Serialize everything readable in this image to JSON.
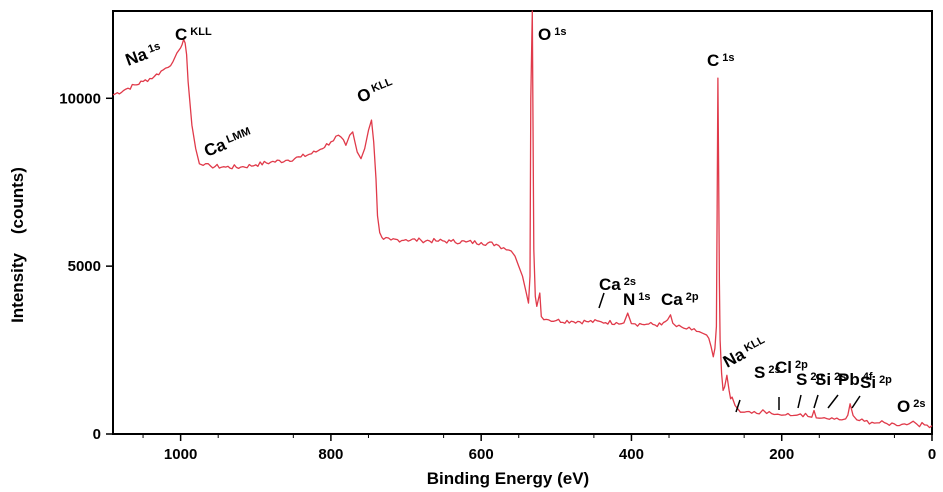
{
  "chart_data": {
    "type": "line",
    "title": "",
    "xlabel": "Binding Energy (eV)",
    "ylabel": "Intensity    (counts)",
    "xlim": [
      1090,
      0
    ],
    "ylim": [
      0,
      12600
    ],
    "x_ticks": [
      1000,
      800,
      600,
      400,
      200,
      0
    ],
    "y_ticks": [
      0,
      5000,
      10000
    ],
    "grid": false,
    "legend": "none",
    "line_color": "#e03a4a",
    "series": [
      {
        "x": [
          1090,
          1070,
          1050,
          1035,
          1020,
          1010,
          1005,
          1000,
          998,
          996,
          994,
          992,
          990,
          985,
          980,
          975,
          970,
          960,
          940,
          920,
          900,
          880,
          860,
          840,
          820,
          800,
          790,
          780,
          775,
          771,
          768,
          765,
          760,
          755,
          750,
          746,
          743,
          740,
          738,
          735,
          732,
          730,
          720,
          700,
          680,
          660,
          640,
          620,
          600,
          580,
          570,
          560,
          555,
          550,
          545,
          540,
          537,
          535,
          534,
          532,
          530,
          528,
          526,
          524,
          522,
          520,
          510,
          500,
          480,
          460,
          440,
          420,
          410,
          405,
          400,
          395,
          380,
          360,
          352,
          348,
          345,
          340,
          330,
          320,
          310,
          305,
          300,
          297,
          294,
          291,
          289,
          287,
          286,
          285,
          284,
          283,
          282,
          280,
          278,
          276,
          273,
          270,
          268,
          266,
          262,
          255,
          250,
          240,
          230,
          225,
          220,
          210,
          205,
          200,
          195,
          185,
          180,
          175,
          165,
          160,
          157,
          154,
          150,
          140,
          130,
          120,
          115,
          112,
          109,
          105,
          100,
          90,
          80,
          70,
          60,
          50,
          40,
          30,
          25,
          20,
          10,
          0
        ],
        "y": [
          10100,
          10300,
          10500,
          10650,
          10900,
          11100,
          11350,
          11500,
          11600,
          11750,
          11650,
          11300,
          10500,
          9200,
          8500,
          8050,
          8000,
          7980,
          7950,
          7950,
          8020,
          8100,
          8150,
          8250,
          8400,
          8700,
          8900,
          8600,
          8900,
          9000,
          8700,
          8400,
          8200,
          8500,
          9050,
          9350,
          8700,
          7600,
          6500,
          6000,
          5850,
          5800,
          5780,
          5790,
          5770,
          5750,
          5740,
          5720,
          5700,
          5650,
          5550,
          5450,
          5300,
          5000,
          4700,
          4200,
          3900,
          4700,
          10000,
          12600,
          5500,
          4100,
          3800,
          4000,
          4200,
          3500,
          3400,
          3380,
          3360,
          3350,
          3340,
          3320,
          3310,
          3600,
          3290,
          3280,
          3270,
          3250,
          3400,
          3550,
          3300,
          3200,
          3150,
          3100,
          3050,
          3000,
          2950,
          2850,
          2600,
          2300,
          2550,
          3200,
          6500,
          10600,
          8000,
          4500,
          2800,
          1800,
          1300,
          1400,
          1750,
          1300,
          1050,
          1100,
          850,
          650,
          650,
          620,
          600,
          720,
          610,
          580,
          590,
          560,
          570,
          550,
          560,
          600,
          520,
          500,
          700,
          480,
          470,
          460,
          440,
          420,
          450,
          560,
          900,
          550,
          420,
          380,
          350,
          330,
          310,
          300,
          290,
          310,
          380,
          290,
          270,
          250
        ]
      }
    ],
    "annotations": [
      {
        "main": "Na",
        "sub": "1s"
      },
      {
        "main": "C",
        "sub": "KLL"
      },
      {
        "main": "Ca",
        "sub": "LMM"
      },
      {
        "main": "O",
        "sub": "KLL"
      },
      {
        "main": "O",
        "sub": "1s"
      },
      {
        "main": "C",
        "sub": "1s"
      },
      {
        "main": "Ca",
        "sub": "2s"
      },
      {
        "main": "N",
        "sub": "1s"
      },
      {
        "main": "Ca",
        "sub": "2p"
      },
      {
        "main": "Na",
        "sub": "KLL"
      },
      {
        "main": "S",
        "sub": "2s"
      },
      {
        "main": "Cl",
        "sub": "2p"
      },
      {
        "main": "S",
        "sub": "2p"
      },
      {
        "main": "Si",
        "sub": "2s"
      },
      {
        "main": "Pb",
        "sub": "4f"
      },
      {
        "main": "Si",
        "sub": "2p"
      },
      {
        "main": "O",
        "sub": "2s"
      }
    ]
  }
}
